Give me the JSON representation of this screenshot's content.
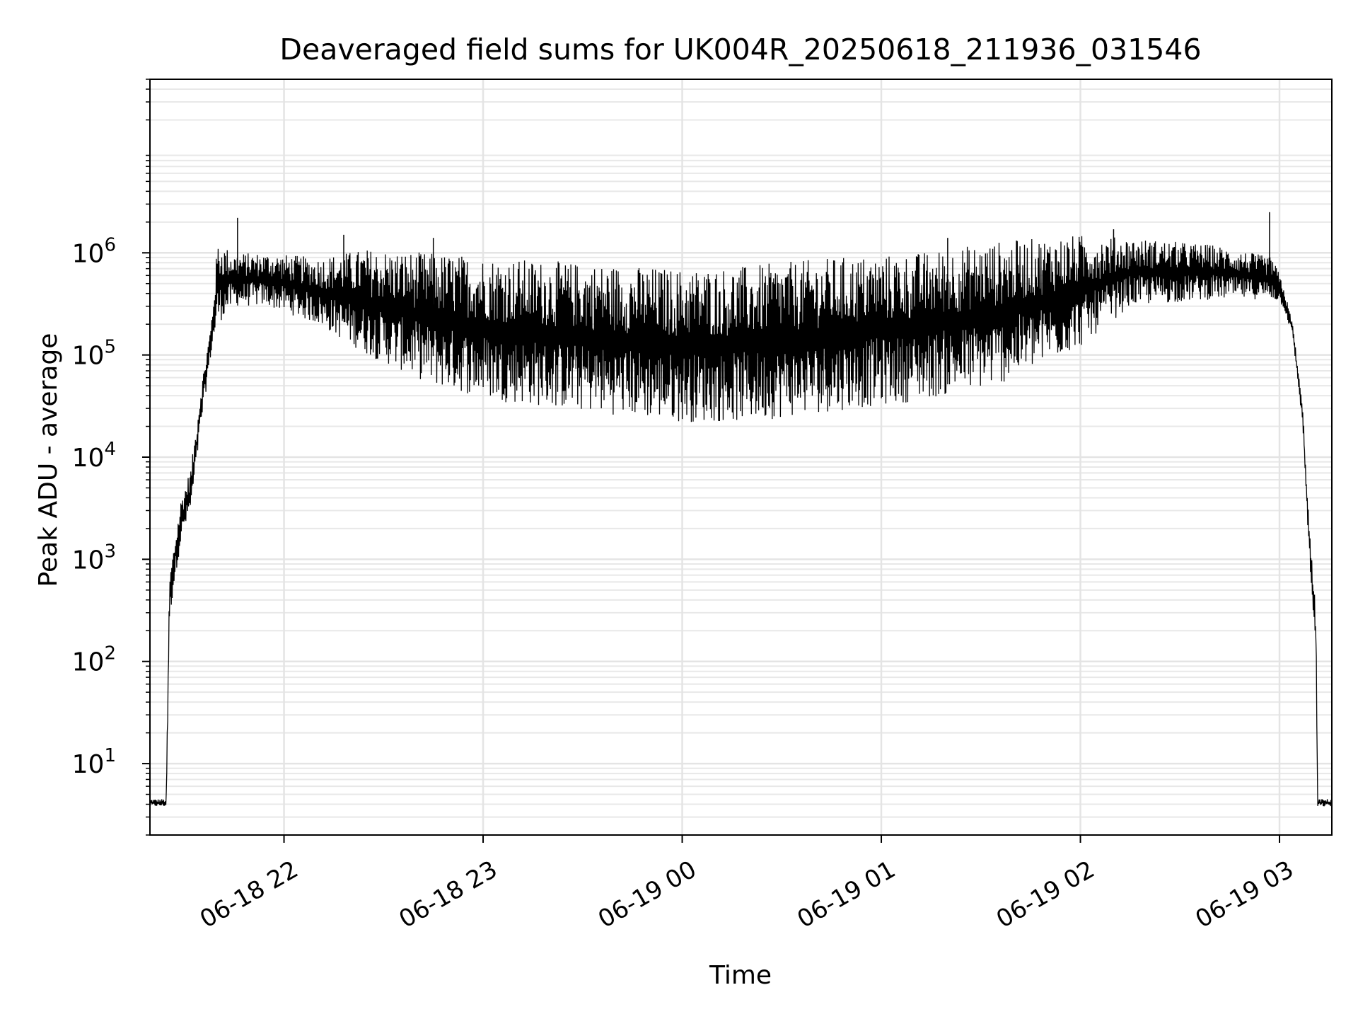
{
  "chart_data": {
    "type": "line",
    "title": "Deaveraged field sums for UK004R_20250618_211936_031546",
    "xlabel": "Time",
    "ylabel": "Peak ADU - average",
    "yscale": "log",
    "ylim": [
      2,
      50000000
    ],
    "xlim": [
      "2025-06-18 21:19:36",
      "2025-06-19 03:15:46"
    ],
    "grid": "major and minor",
    "line_color": "#000000",
    "x_ticks": [
      {
        "t": "2025-06-18 22:00",
        "label": "06-18 22"
      },
      {
        "t": "2025-06-18 23:00",
        "label": "06-18 23"
      },
      {
        "t": "2025-06-19 00:00",
        "label": "06-19 00"
      },
      {
        "t": "2025-06-19 01:00",
        "label": "06-19 01"
      },
      {
        "t": "2025-06-19 02:00",
        "label": "06-19 02"
      },
      {
        "t": "2025-06-19 03:00",
        "label": "06-19 03"
      }
    ],
    "y_ticks": [
      {
        "value": 10,
        "base": "10",
        "exp": "1"
      },
      {
        "value": 100,
        "base": "10",
        "exp": "2"
      },
      {
        "value": 1000,
        "base": "10",
        "exp": "3"
      },
      {
        "value": 10000,
        "base": "10",
        "exp": "4"
      },
      {
        "value": 100000,
        "base": "10",
        "exp": "5"
      },
      {
        "value": 1000000,
        "base": "10",
        "exp": "6"
      }
    ],
    "series": [
      {
        "envelope": [
          {
            "t": "2025-06-18 21:19:36",
            "low": 3.8,
            "high": 4.5
          },
          {
            "t": "2025-06-18 21:24:30",
            "low": 3.8,
            "high": 4.5
          },
          {
            "t": "2025-06-18 21:25:30",
            "low": 250,
            "high": 700
          },
          {
            "t": "2025-06-18 21:27:00",
            "low": 600,
            "high": 1500
          },
          {
            "t": "2025-06-18 21:29:00",
            "low": 1500,
            "high": 4000
          },
          {
            "t": "2025-06-18 21:32:00",
            "low": 3000,
            "high": 8000
          },
          {
            "t": "2025-06-18 21:35:00",
            "low": 20000,
            "high": 50000
          },
          {
            "t": "2025-06-18 21:38:00",
            "low": 100000,
            "high": 200000
          },
          {
            "t": "2025-06-18 21:40:00",
            "low": 200000,
            "high": 1300000
          },
          {
            "t": "2025-06-18 21:45:00",
            "low": 300000,
            "high": 1000000
          },
          {
            "t": "2025-06-18 21:55:00",
            "low": 300000,
            "high": 1000000
          },
          {
            "t": "2025-06-18 22:10:00",
            "low": 200000,
            "high": 900000
          },
          {
            "t": "2025-06-18 22:25:00",
            "low": 100000,
            "high": 1100000
          },
          {
            "t": "2025-06-18 22:45:00",
            "low": 50000,
            "high": 1000000
          },
          {
            "t": "2025-06-18 23:05:00",
            "low": 35000,
            "high": 900000
          },
          {
            "t": "2025-06-18 23:30:00",
            "low": 28000,
            "high": 800000
          },
          {
            "t": "2025-06-19 00:00:00",
            "low": 22000,
            "high": 700000
          },
          {
            "t": "2025-06-19 00:20:00",
            "low": 22000,
            "high": 750000
          },
          {
            "t": "2025-06-19 00:45:00",
            "low": 28000,
            "high": 900000
          },
          {
            "t": "2025-06-19 01:10:00",
            "low": 35000,
            "high": 1000000
          },
          {
            "t": "2025-06-19 01:35:00",
            "low": 50000,
            "high": 1300000
          },
          {
            "t": "2025-06-19 02:00:00",
            "low": 120000,
            "high": 1500000
          },
          {
            "t": "2025-06-19 02:15:00",
            "low": 300000,
            "high": 1400000
          },
          {
            "t": "2025-06-19 02:40:00",
            "low": 350000,
            "high": 1200000
          },
          {
            "t": "2025-06-19 02:58:00",
            "low": 350000,
            "high": 900000
          },
          {
            "t": "2025-06-19 03:01:00",
            "low": 300000,
            "high": 500000
          },
          {
            "t": "2025-06-19 03:04:00",
            "low": 150000,
            "high": 200000
          },
          {
            "t": "2025-06-19 03:07:00",
            "low": 20000,
            "high": 30000
          },
          {
            "t": "2025-06-19 03:09:00",
            "low": 1000,
            "high": 2000
          },
          {
            "t": "2025-06-19 03:11:00",
            "low": 100,
            "high": 300
          },
          {
            "t": "2025-06-19 03:11:30",
            "low": 3.8,
            "high": 4.5
          },
          {
            "t": "2025-06-19 03:15:46",
            "low": 3.8,
            "high": 4.5
          }
        ],
        "spikes": [
          {
            "t": "2025-06-18 21:46:00",
            "value": 2200000
          },
          {
            "t": "2025-06-19 02:57:00",
            "value": 2500000
          },
          {
            "t": "2025-06-18 22:18:00",
            "value": 1500000
          },
          {
            "t": "2025-06-18 22:45:00",
            "value": 1400000
          },
          {
            "t": "2025-06-19 01:20:00",
            "value": 1400000
          },
          {
            "t": "2025-06-19 02:10:00",
            "value": 1700000
          }
        ]
      }
    ]
  }
}
